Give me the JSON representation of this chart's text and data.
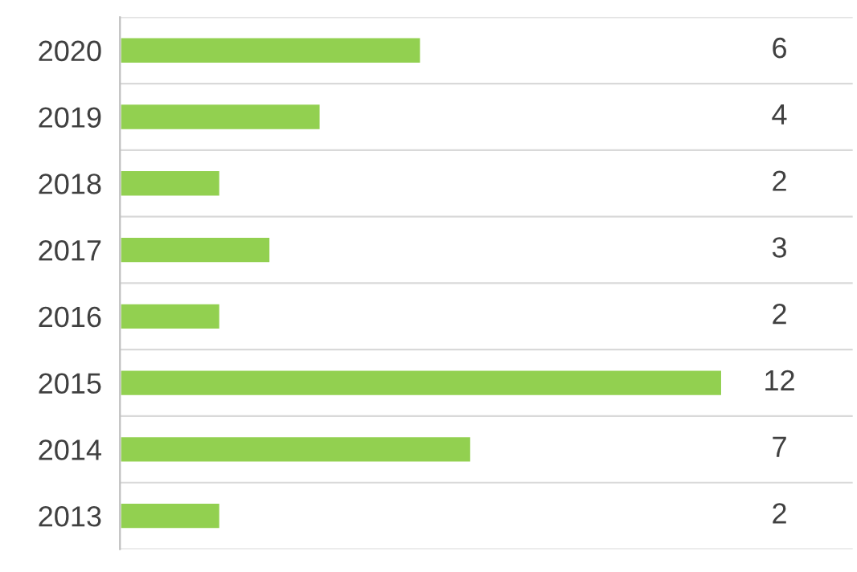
{
  "chart_data": {
    "type": "bar",
    "orientation": "horizontal",
    "categories": [
      "2020",
      "2019",
      "2018",
      "2017",
      "2016",
      "2015",
      "2014",
      "2013"
    ],
    "values": [
      6,
      4,
      2,
      3,
      2,
      12,
      7,
      2
    ],
    "color": "#92d050",
    "xlim": [
      0,
      14.6
    ],
    "data_labels": true,
    "grid": "y",
    "tick_labels": "y"
  }
}
